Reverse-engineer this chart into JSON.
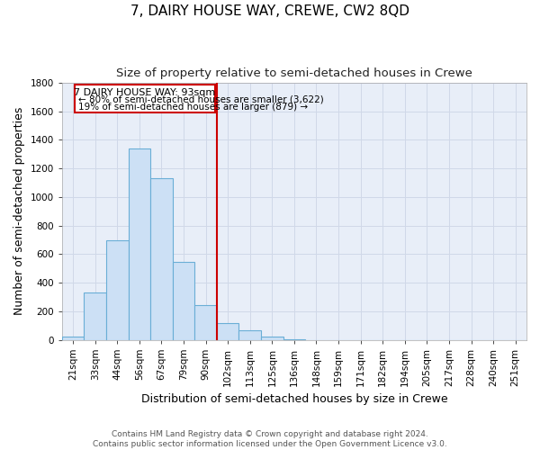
{
  "title": "7, DAIRY HOUSE WAY, CREWE, CW2 8QD",
  "subtitle": "Size of property relative to semi-detached houses in Crewe",
  "xlabel": "Distribution of semi-detached houses by size in Crewe",
  "ylabel": "Number of semi-detached properties",
  "footer_line1": "Contains HM Land Registry data © Crown copyright and database right 2024.",
  "footer_line2": "Contains public sector information licensed under the Open Government Licence v3.0.",
  "bar_labels": [
    "21sqm",
    "33sqm",
    "44sqm",
    "56sqm",
    "67sqm",
    "79sqm",
    "90sqm",
    "102sqm",
    "113sqm",
    "125sqm",
    "136sqm",
    "148sqm",
    "159sqm",
    "171sqm",
    "182sqm",
    "194sqm",
    "205sqm",
    "217sqm",
    "228sqm",
    "240sqm",
    "251sqm"
  ],
  "bar_values": [
    25,
    330,
    695,
    1340,
    1130,
    545,
    245,
    115,
    67,
    25,
    5,
    0,
    0,
    0,
    0,
    0,
    0,
    0,
    0,
    0,
    0
  ],
  "bar_color": "#cce0f5",
  "bar_edge_color": "#6aaed6",
  "property_line_index": 6,
  "annotation_text_line1": "7 DAIRY HOUSE WAY: 93sqm",
  "annotation_text_line2": "← 80% of semi-detached houses are smaller (3,622)",
  "annotation_text_line3": "19% of semi-detached houses are larger (879) →",
  "annotation_box_color": "#ffffff",
  "annotation_box_edge": "#cc0000",
  "property_line_color": "#cc0000",
  "ylim": [
    0,
    1800
  ],
  "yticks": [
    0,
    200,
    400,
    600,
    800,
    1000,
    1200,
    1400,
    1600,
    1800
  ],
  "grid_color": "#d0d8e8",
  "background_color": "#ffffff",
  "plot_bg_color": "#e8eef8",
  "title_fontsize": 11,
  "subtitle_fontsize": 9.5,
  "axis_label_fontsize": 9,
  "tick_fontsize": 7.5,
  "footer_fontsize": 6.5
}
